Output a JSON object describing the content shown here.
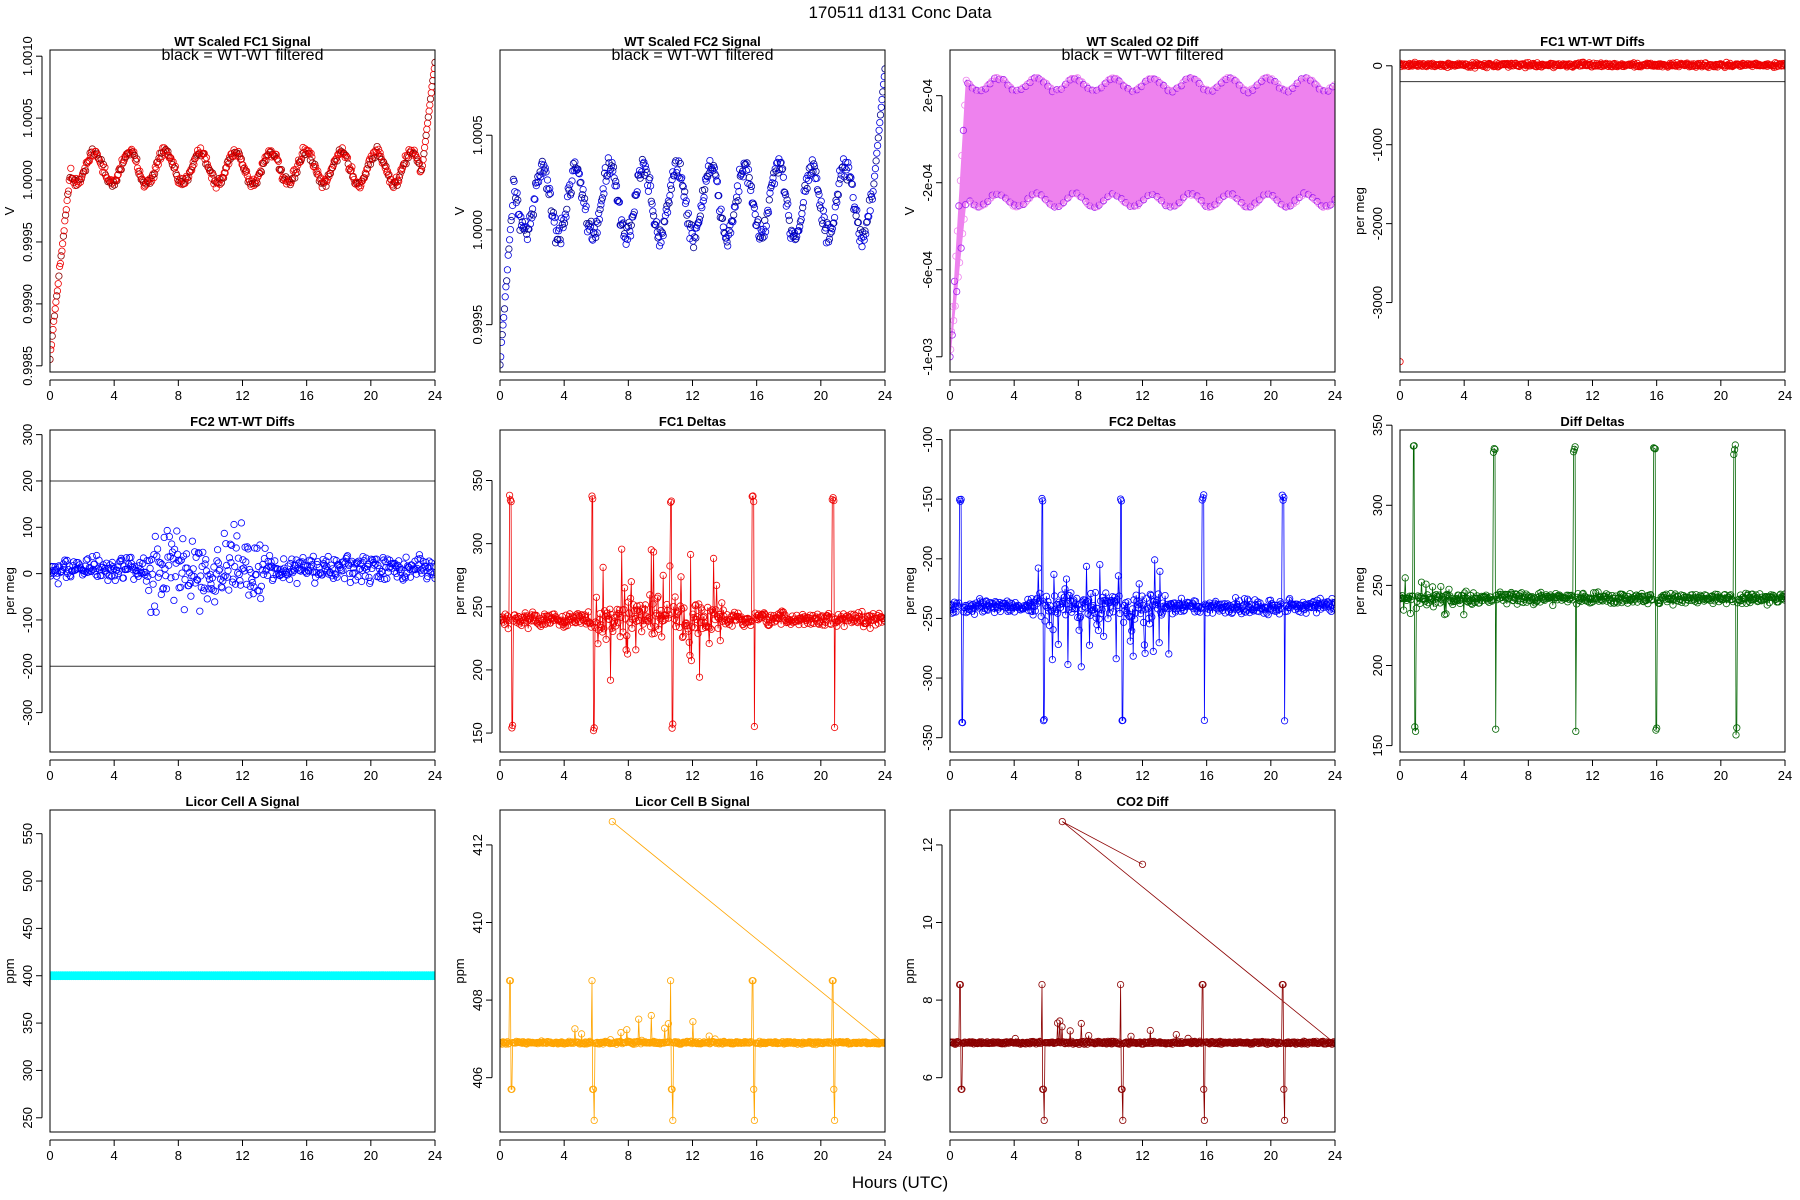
{
  "page_title": "170511    d131    Conc Data",
  "x_axis_label": "Hours (UTC)",
  "chart_data": [
    {
      "id": "p1",
      "type": "scatter",
      "title": "WT Scaled FC1 Signal",
      "subtitle": "black = WT-WT filtered",
      "ylabel": "V",
      "xlim": [
        0,
        24
      ],
      "ylim": [
        0.99845,
        1.00105
      ],
      "xticks": [
        0,
        4,
        8,
        12,
        16,
        20,
        24
      ],
      "yticks": [
        0.9985,
        0.999,
        0.9995,
        1.0,
        1.0005,
        1.001
      ],
      "ytick_labels": [
        "0.9985",
        "0.9990",
        "0.9995",
        "1.0000",
        "1.0005",
        "1.0010"
      ],
      "color": "#ee0000",
      "overlay_color": "#8b0000",
      "pattern": {
        "kind": "drift",
        "base": 1.0001,
        "amp": 0.00013,
        "period": 2.2,
        "noise": 6e-05,
        "start": 0.99858,
        "rise": 1.3,
        "end_spike": 1.00095
      }
    },
    {
      "id": "p2",
      "type": "scatter",
      "title": "WT Scaled FC2 Signal",
      "subtitle": "black = WT-WT filtered",
      "ylabel": "V",
      "xlim": [
        0,
        24
      ],
      "ylim": [
        0.99925,
        1.00095
      ],
      "xticks": [
        0,
        4,
        8,
        12,
        16,
        20,
        24
      ],
      "yticks": [
        0.9995,
        1.0,
        1.0005
      ],
      "ytick_labels": [
        "0.9995",
        "1.0000",
        "1.0005"
      ],
      "color": "#0000dd",
      "overlay_color": "#00008b",
      "pattern": {
        "kind": "drift",
        "base": 1.00015,
        "amp": 0.00018,
        "period": 2.1,
        "noise": 9e-05,
        "start": 0.9993,
        "rise": 0.8,
        "end_spike": 1.00085
      }
    },
    {
      "id": "p3",
      "type": "scatter",
      "title": "WT Scaled O2 Diff",
      "subtitle": "black = WT-WT filtered",
      "ylabel": "V",
      "xlim": [
        0,
        24
      ],
      "ylim": [
        -0.00107,
        0.00041
      ],
      "xticks": [
        0,
        4,
        8,
        12,
        16,
        20,
        24
      ],
      "yticks": [
        0.0002,
        -0.0002,
        -0.0006,
        -0.001
      ],
      "ytick_labels": [
        "2e-04",
        "-2e-04",
        "-6e-04",
        "-1e-03"
      ],
      "color": "#ee82ee",
      "overlay_color": "#a020f0",
      "pattern": {
        "kind": "band",
        "upper": 0.00025,
        "lower": -0.00028,
        "amp": 3e-05,
        "period": 2.4,
        "start": -0.001,
        "rise": 1.0
      }
    },
    {
      "id": "p4",
      "type": "scatter",
      "title": "FC1 WT-WT Diffs",
      "ylabel": "per meg",
      "xlim": [
        0,
        24
      ],
      "ylim": [
        -3880,
        200
      ],
      "xticks": [
        0,
        4,
        8,
        12,
        16,
        20,
        24
      ],
      "yticks": [
        0,
        -1000,
        -2000,
        -3000
      ],
      "ytick_labels": [
        "0",
        "-1000",
        "-2000",
        "-3000"
      ],
      "hlines": [
        200,
        -200
      ],
      "color": "#ee0000",
      "pattern": {
        "kind": "scatter",
        "center": 10,
        "spread": 40,
        "outlier": [
          0,
          -3750
        ]
      }
    },
    {
      "id": "p5",
      "type": "scatter",
      "title": "FC2 WT-WT Diffs",
      "ylabel": "per meg",
      "xlim": [
        0,
        24
      ],
      "ylim": [
        -385,
        310
      ],
      "xticks": [
        0,
        4,
        8,
        12,
        16,
        20,
        24
      ],
      "yticks": [
        300,
        200,
        100,
        0,
        -100,
        -200,
        -300
      ],
      "ytick_labels": [
        "300",
        "200",
        "100",
        "0",
        "-100",
        "-200",
        "-300"
      ],
      "hlines": [
        200,
        -200
      ],
      "color": "#0000ff",
      "pattern": {
        "kind": "scatter",
        "center": 10,
        "spread": 40,
        "wide": [
          6,
          13.5,
          110
        ]
      }
    },
    {
      "id": "p6",
      "type": "line",
      "title": "FC1 Deltas",
      "ylabel": "per meg",
      "xlim": [
        0,
        24
      ],
      "ylim": [
        135,
        390
      ],
      "xticks": [
        0,
        4,
        8,
        12,
        16,
        20,
        24
      ],
      "yticks": [
        150,
        200,
        250,
        300,
        350
      ],
      "ytick_labels": [
        "150",
        "200",
        "250",
        "300",
        "350"
      ],
      "color": "#ee0000",
      "pattern": {
        "kind": "spiky",
        "base": 240,
        "noise": 8,
        "spike_hi": 335,
        "spike_lo": 155,
        "spikes": [
          0.6,
          5.7,
          10.6,
          15.7,
          20.7
        ],
        "busy": [
          6,
          14,
          70
        ]
      }
    },
    {
      "id": "p7",
      "type": "line",
      "title": "FC2 Deltas",
      "ylabel": "per meg",
      "xlim": [
        0,
        24
      ],
      "ylim": [
        -362,
        -92
      ],
      "xticks": [
        0,
        4,
        8,
        12,
        16,
        20,
        24
      ],
      "yticks": [
        -100,
        -150,
        -200,
        -250,
        -300,
        -350
      ],
      "ytick_labels": [
        "-100",
        "-150",
        "-200",
        "-250",
        "-300",
        "-350"
      ],
      "color": "#0000ff",
      "pattern": {
        "kind": "spiky",
        "base": -240,
        "noise": 9,
        "spike_hi": -150,
        "spike_lo": -335,
        "spikes": [
          0.6,
          5.7,
          10.6,
          15.7,
          20.7
        ],
        "busy": [
          5.5,
          14,
          65
        ]
      }
    },
    {
      "id": "p8",
      "type": "line",
      "title": "Diff Deltas",
      "ylabel": "per meg",
      "xlim": [
        0,
        24
      ],
      "ylim": [
        146,
        347
      ],
      "xticks": [
        0,
        4,
        8,
        12,
        16,
        20,
        24
      ],
      "yticks": [
        150,
        200,
        250,
        300,
        350
      ],
      "ytick_labels": [
        "150",
        "200",
        "250",
        "300",
        "350"
      ],
      "color": "#006400",
      "pattern": {
        "kind": "spiky",
        "base": 242,
        "noise": 5,
        "spike_hi": 335,
        "spike_lo": 160,
        "spikes": [
          0.8,
          5.8,
          10.8,
          15.8,
          20.8
        ],
        "busy": [
          0,
          4,
          18
        ]
      }
    },
    {
      "id": "p9",
      "type": "line",
      "title": "Licor Cell A Signal",
      "ylabel": "ppm",
      "xlim": [
        0,
        24
      ],
      "ylim": [
        235,
        575
      ],
      "xticks": [
        0,
        4,
        8,
        12,
        16,
        20,
        24
      ],
      "yticks": [
        250,
        300,
        350,
        400,
        450,
        500,
        550
      ],
      "ytick_labels": [
        "250",
        "300",
        "350",
        "400",
        "450",
        "500",
        "550"
      ],
      "color": "#00ffff",
      "pattern": {
        "kind": "flat",
        "value": 400
      }
    },
    {
      "id": "p10",
      "type": "line",
      "title": "Licor Cell B Signal",
      "ylabel": "ppm",
      "xlim": [
        0,
        24
      ],
      "ylim": [
        404.6,
        412.9
      ],
      "xticks": [
        0,
        4,
        8,
        12,
        16,
        20,
        24
      ],
      "yticks": [
        406,
        408,
        410,
        412
      ],
      "ytick_labels": [
        "406",
        "408",
        "410",
        "412"
      ],
      "color": "#ffa500",
      "pattern": {
        "kind": "co2",
        "base": 406.9,
        "noise": 0.05,
        "hi": 408.5,
        "lo": 405.7,
        "lo2": 404.9,
        "spikes": [
          0.6,
          5.7,
          10.6,
          15.7,
          20.7
        ],
        "big": [
          7,
          412.6
        ]
      }
    },
    {
      "id": "p11",
      "type": "line",
      "title": "CO2 Diff",
      "ylabel": "ppm",
      "xlim": [
        0,
        24
      ],
      "ylim": [
        4.6,
        12.9
      ],
      "xticks": [
        0,
        4,
        8,
        12,
        16,
        20,
        24
      ],
      "yticks": [
        6,
        8,
        10,
        12
      ],
      "ytick_labels": [
        "6",
        "8",
        "10",
        "12"
      ],
      "color": "#8b0000",
      "pattern": {
        "kind": "co2",
        "base": 6.9,
        "noise": 0.05,
        "hi": 8.4,
        "lo": 5.7,
        "lo2": 4.9,
        "spikes": [
          0.6,
          5.7,
          10.6,
          15.7,
          20.7
        ],
        "big": [
          7,
          12.6
        ],
        "big2": [
          12,
          11.5
        ]
      }
    }
  ]
}
